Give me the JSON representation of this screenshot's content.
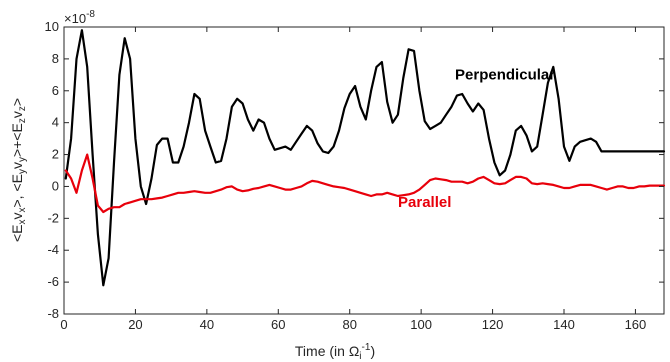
{
  "chart_data": {
    "type": "line",
    "title": "",
    "xlabel": "Time (in Ω",
    "xlabel_sup": "-1",
    "xlabel_sub": "i",
    "xlabel_close": ")",
    "ylabel": "<E_x v_x>, <E_y v_y>+<E_z v_z>",
    "ylabel_parts": {
      "p1": "<E",
      "s1": "x",
      "p2": "v",
      "s2": "x",
      "p3": ">, <E",
      "s3": "y",
      "p4": "v",
      "s4": "y",
      "p5": ">+<E",
      "s5": "z",
      "p6": "v",
      "s6": "z",
      "p7": ">"
    },
    "y_multiplier_base": "×10",
    "y_multiplier_exp": "-8",
    "xlim": [
      0,
      168
    ],
    "ylim": [
      -8,
      10
    ],
    "xticks": [
      0,
      20,
      40,
      60,
      80,
      100,
      120,
      140,
      160
    ],
    "yticks": [
      -8,
      -6,
      -4,
      -2,
      0,
      2,
      4,
      6,
      8,
      10
    ],
    "grid": false,
    "legend": "inline labels",
    "series": [
      {
        "name": "Perpendicular",
        "color": "#000000",
        "x": [
          0.5,
          2,
          3.5,
          5,
          6.5,
          8,
          9.5,
          11,
          12.5,
          14,
          15.5,
          17,
          18.5,
          20,
          21.5,
          23,
          24.5,
          26,
          27.5,
          29,
          30.5,
          32,
          33.5,
          35,
          36.5,
          38,
          39.5,
          41,
          42.5,
          44,
          45.5,
          47,
          48.5,
          50,
          51.5,
          53,
          54.5,
          56,
          57.5,
          59,
          60.5,
          62,
          63.5,
          65,
          66.5,
          68,
          69.5,
          71,
          72.5,
          74,
          75.5,
          77,
          78.5,
          80,
          81.5,
          83,
          84.5,
          86,
          87.5,
          89,
          90.5,
          92,
          93.5,
          95,
          96.5,
          98,
          99.5,
          101,
          102.5,
          104,
          105.5,
          107,
          108.5,
          110,
          111.5,
          113,
          114.5,
          116,
          117.5,
          119,
          120.5,
          122,
          123.5,
          125,
          126.5,
          128,
          129.5,
          131,
          132.5,
          134,
          135.5,
          137,
          138.5,
          140,
          141.5,
          143,
          144.5,
          146,
          147.5,
          149,
          150.5,
          152,
          153.5,
          155,
          156.5,
          158,
          159.5,
          161,
          162.5,
          164,
          165.5,
          167,
          168
        ],
        "y": [
          0.5,
          3,
          8,
          9.8,
          7.5,
          2,
          -3,
          -6.2,
          -4.5,
          1.5,
          7,
          9.3,
          8,
          3,
          0,
          -1.1,
          0.5,
          2.6,
          3,
          3,
          1.5,
          1.5,
          2.5,
          4,
          5.8,
          5.5,
          3.5,
          2.5,
          1.5,
          1.6,
          3,
          5,
          5.5,
          5.2,
          4.2,
          3.5,
          4.2,
          4,
          3,
          2.3,
          2.4,
          2.5,
          2.3,
          2.8,
          3.3,
          3.8,
          3.5,
          2.7,
          2.2,
          2.1,
          2.5,
          3.5,
          4.9,
          5.8,
          6.3,
          5,
          4.2,
          6,
          7.5,
          7.8,
          5.3,
          4,
          4.5,
          6.8,
          8.6,
          8.5,
          6,
          4.1,
          3.6,
          3.8,
          4,
          4.5,
          5,
          5.7,
          5.8,
          5.2,
          4.7,
          5.2,
          4.8,
          3,
          1.5,
          0.7,
          1,
          2,
          3.5,
          3.8,
          3.2,
          2.2,
          2.5,
          4.5,
          6.5,
          7.5,
          5.5,
          2.5,
          1.6,
          2.5,
          2.8,
          2.9,
          3,
          2.8,
          2.2,
          2.2,
          2.2,
          2.2,
          2.2,
          2.2,
          2.2,
          2.2,
          2.2,
          2.2,
          2.2,
          2.2,
          2.2
        ]
      },
      {
        "name": "Parallel",
        "color": "#e8000b",
        "x": [
          0.5,
          2,
          3.5,
          5,
          6.5,
          8,
          9.5,
          11,
          12.5,
          14,
          15.5,
          17,
          18.5,
          20,
          21.5,
          23,
          24.5,
          26,
          27.5,
          29,
          30.5,
          32,
          33.5,
          35,
          36.5,
          38,
          39.5,
          41,
          42.5,
          44,
          45.5,
          47,
          48.5,
          50,
          51.5,
          53,
          54.5,
          56,
          57.5,
          59,
          60.5,
          62,
          63.5,
          65,
          66.5,
          68,
          69.5,
          71,
          72.5,
          74,
          75.5,
          77,
          78.5,
          80,
          81.5,
          83,
          84.5,
          86,
          87.5,
          89,
          90.5,
          92,
          93.5,
          95,
          96.5,
          98,
          99.5,
          101,
          102.5,
          104,
          105.5,
          107,
          108.5,
          110,
          111.5,
          113,
          114.5,
          116,
          117.5,
          119,
          120.5,
          122,
          123.5,
          125,
          126.5,
          128,
          129.5,
          131,
          132.5,
          134,
          135.5,
          137,
          138.5,
          140,
          141.5,
          143,
          144.5,
          146,
          147.5,
          149,
          150.5,
          152,
          153.5,
          155,
          156.5,
          158,
          159.5,
          161,
          162.5,
          164,
          165.5,
          167,
          168
        ],
        "y": [
          1,
          0.5,
          -0.4,
          1,
          2,
          0.5,
          -1.2,
          -1.6,
          -1.4,
          -1.3,
          -1.3,
          -1.1,
          -1,
          -0.9,
          -0.8,
          -0.8,
          -0.8,
          -0.75,
          -0.7,
          -0.6,
          -0.5,
          -0.4,
          -0.4,
          -0.35,
          -0.3,
          -0.35,
          -0.4,
          -0.4,
          -0.3,
          -0.2,
          -0.05,
          0,
          -0.2,
          -0.3,
          -0.25,
          -0.15,
          -0.1,
          0,
          0.1,
          0,
          -0.1,
          -0.2,
          -0.2,
          -0.1,
          0,
          0.2,
          0.35,
          0.3,
          0.2,
          0.1,
          0,
          -0.05,
          -0.1,
          -0.2,
          -0.3,
          -0.4,
          -0.5,
          -0.6,
          -0.5,
          -0.5,
          -0.4,
          -0.5,
          -0.6,
          -0.55,
          -0.5,
          -0.4,
          -0.2,
          0.1,
          0.4,
          0.5,
          0.45,
          0.4,
          0.3,
          0.3,
          0.3,
          0.2,
          0.3,
          0.5,
          0.6,
          0.4,
          0.2,
          0.15,
          0.2,
          0.4,
          0.6,
          0.6,
          0.5,
          0.2,
          0.15,
          0.2,
          0.15,
          0.1,
          0,
          -0.1,
          -0.1,
          0,
          0.1,
          0.1,
          0.1,
          0,
          -0.1,
          -0.2,
          -0.1,
          0,
          0,
          -0.1,
          -0.1,
          0,
          0,
          0.05,
          0.05,
          0.05,
          0.05
        ]
      }
    ],
    "annotations": [
      {
        "text": "Perpendicular",
        "x": 123.5,
        "y": 6.7,
        "color": "#000000"
      },
      {
        "text": "Parallel",
        "x": 101,
        "y": -1.3,
        "color": "#e8000b"
      }
    ]
  }
}
